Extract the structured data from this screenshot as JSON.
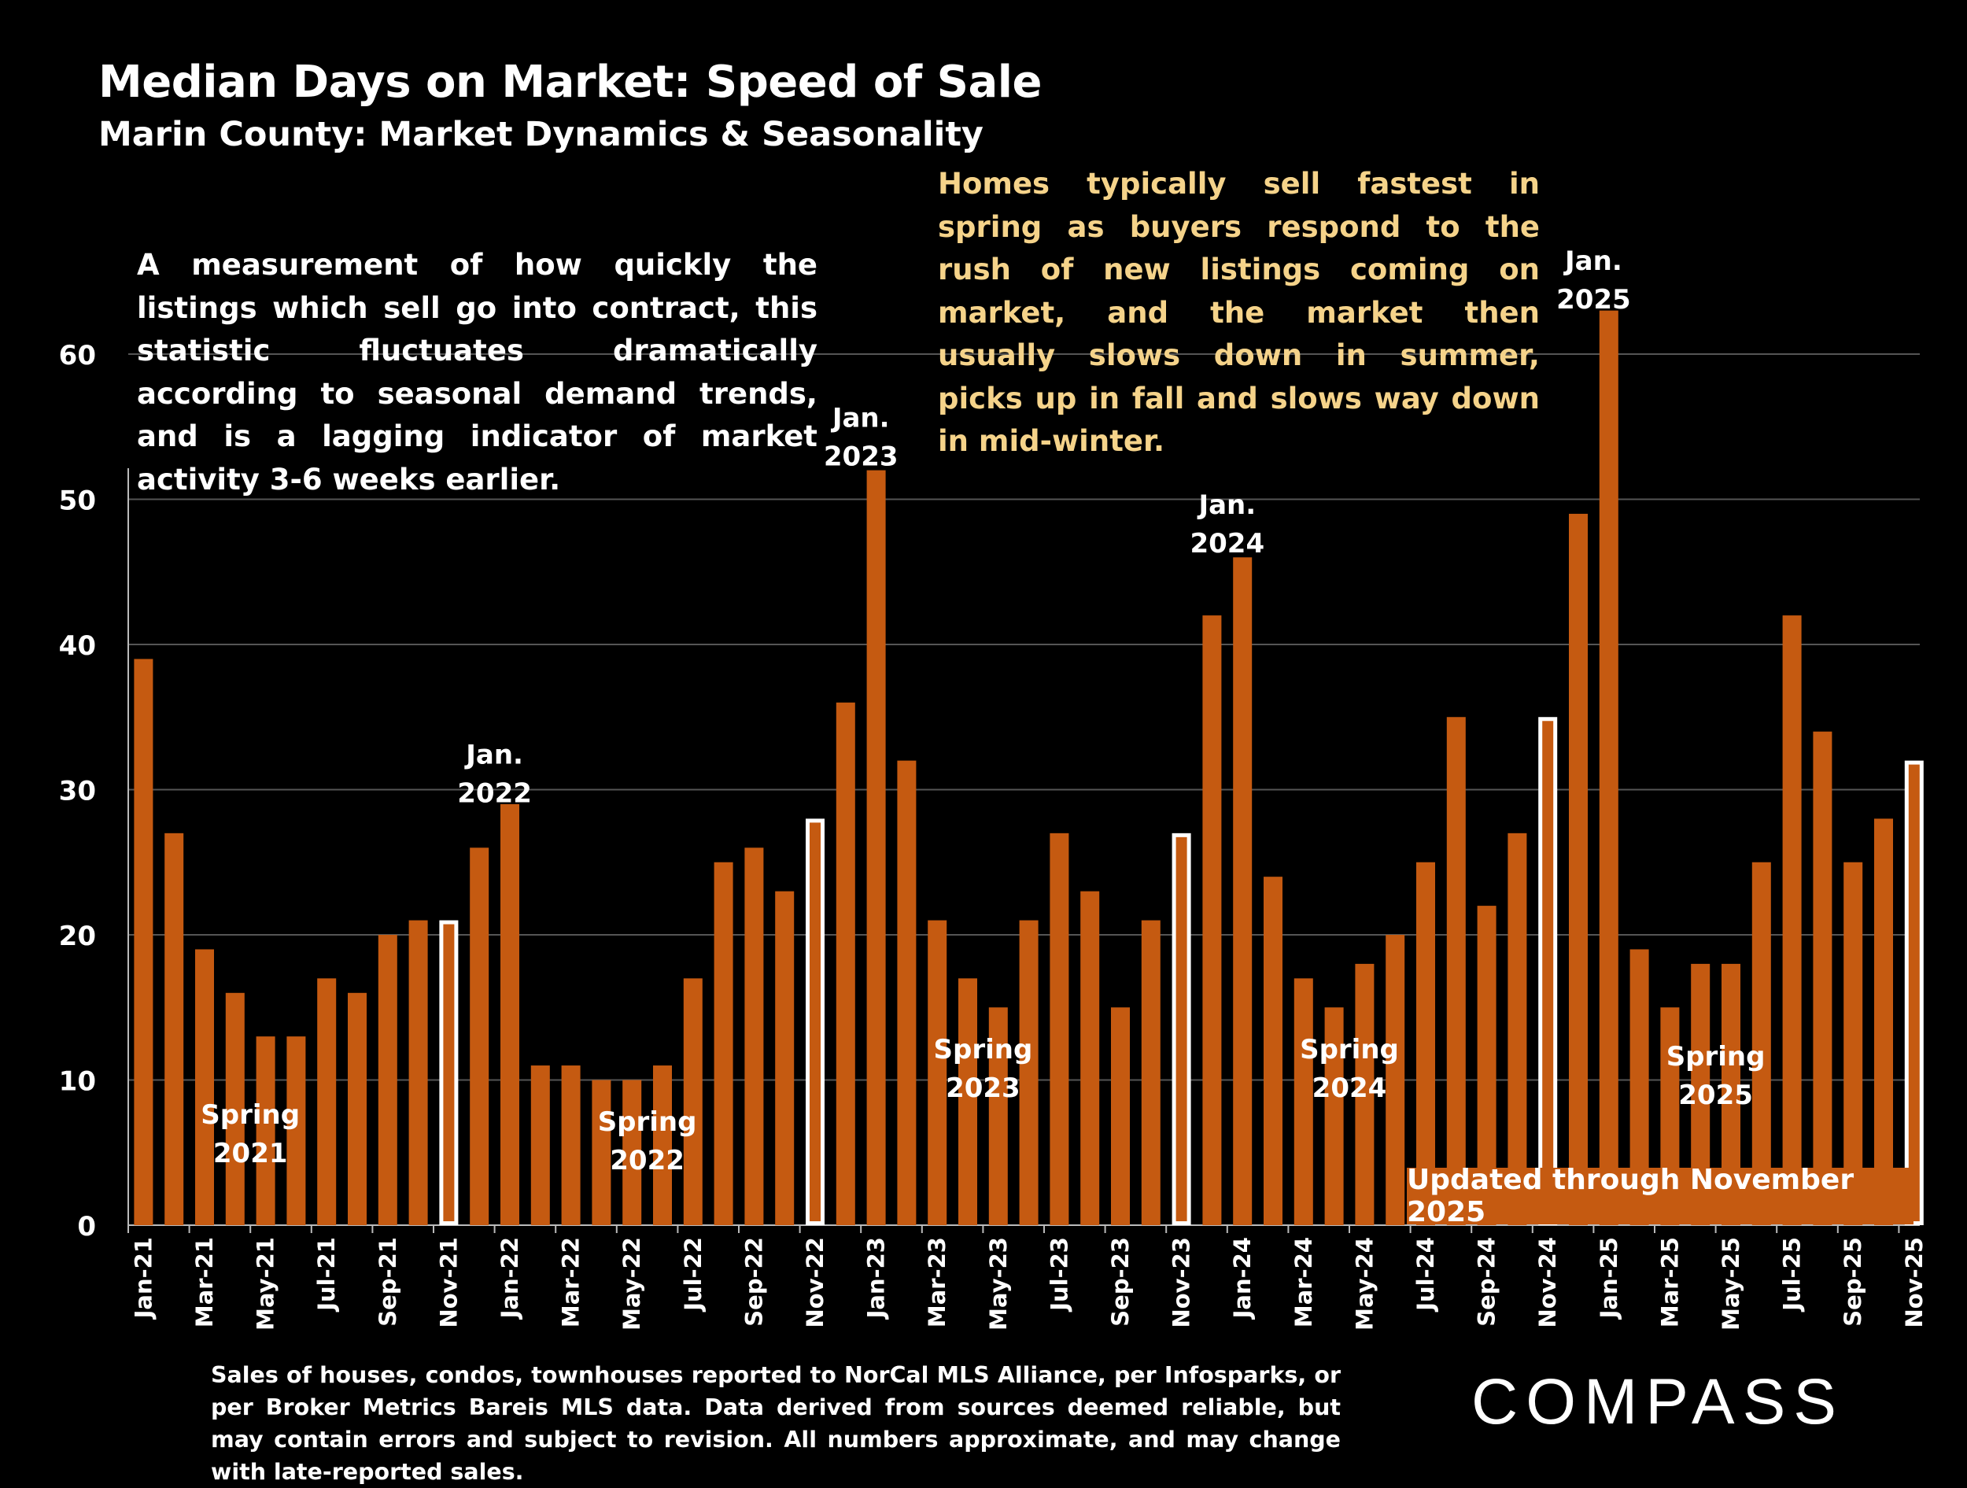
{
  "header": {
    "title": "Median Days on Market:  Speed of Sale",
    "subtitle": "Marin County: Market Dynamics & Seasonality"
  },
  "description": "A measurement of how quickly the listings which sell go into contract, this statistic fluctuates dramatically according to seasonal demand trends, and is a lagging indicator of market activity 3-6 weeks earlier.",
  "note": "Homes typically sell fastest in spring as buyers respond to the rush of new listings coming on market, and the market then usually slows down in summer, picks up in fall and slows way down in mid-winter.",
  "updated": "Updated through November 2025",
  "source": "Sales of houses, condos, townhouses reported to NorCal MLS Alliance, per Infosparks, or per Broker Metrics Bareis MLS data. Data derived from sources deemed reliable, but may contain errors and subject to revision. All numbers approximate, and may change with late-reported sales.",
  "logo": "COMPASS",
  "chart_data": {
    "type": "bar",
    "title": "Median Days on Market:  Speed of Sale",
    "ylim": [
      0,
      63
    ],
    "yticks": [
      0,
      10,
      20,
      30,
      40,
      50,
      60
    ],
    "grid": true,
    "categories": [
      "Jan-21",
      "Feb-21",
      "Mar-21",
      "Apr-21",
      "May-21",
      "Jun-21",
      "Jul-21",
      "Aug-21",
      "Sep-21",
      "Oct-21",
      "Nov-21",
      "Dec-21",
      "Jan-22",
      "Feb-22",
      "Mar-22",
      "Apr-22",
      "May-22",
      "Jun-22",
      "Jul-22",
      "Aug-22",
      "Sep-22",
      "Oct-22",
      "Nov-22",
      "Dec-22",
      "Jan-23",
      "Feb-23",
      "Mar-23",
      "Apr-23",
      "May-23",
      "Jun-23",
      "Jul-23",
      "Aug-23",
      "Sep-23",
      "Oct-23",
      "Nov-23",
      "Dec-23",
      "Jan-24",
      "Feb-24",
      "Mar-24",
      "Apr-24",
      "May-24",
      "Jun-24",
      "Jul-24",
      "Aug-24",
      "Sep-24",
      "Oct-24",
      "Nov-24",
      "Dec-24",
      "Jan-25",
      "Feb-25",
      "Mar-25",
      "Apr-25",
      "May-25",
      "Jun-25",
      "Jul-25",
      "Aug-25",
      "Sep-25",
      "Oct-25",
      "Nov-25"
    ],
    "values": [
      39,
      27,
      19,
      16,
      13,
      13,
      17,
      16,
      20,
      21,
      21,
      26,
      29,
      11,
      11,
      10,
      10,
      11,
      17,
      25,
      26,
      23,
      28,
      36,
      52,
      32,
      21,
      17,
      15,
      21,
      27,
      23,
      15,
      21,
      27,
      42,
      46,
      24,
      17,
      15,
      18,
      20,
      25,
      35,
      22,
      27,
      35,
      49,
      63,
      19,
      15,
      18,
      18,
      25,
      42,
      34,
      25,
      28,
      32
    ],
    "highlighted": [
      "Nov-21",
      "Nov-22",
      "Nov-23",
      "Nov-24",
      "Nov-25"
    ],
    "xtick_labels": [
      "Jan-21",
      "Mar-21",
      "May-21",
      "Jul-21",
      "Sep-21",
      "Nov-21",
      "Jan-22",
      "Mar-22",
      "May-22",
      "Jul-22",
      "Sep-22",
      "Nov-22",
      "Jan-23",
      "Mar-23",
      "May-23",
      "Jul-23",
      "Sep-23",
      "Nov-23",
      "Jan-24",
      "Mar-24",
      "May-24",
      "Jul-24",
      "Sep-24",
      "Nov-24",
      "Jan-25",
      "Mar-25",
      "May-25",
      "Jul-25",
      "Sep-25",
      "Nov-25"
    ],
    "annotations": [
      {
        "text": [
          "Spring",
          "2021"
        ],
        "at": "Apr-21",
        "y": 7
      },
      {
        "text": [
          "Jan.",
          "2022"
        ],
        "at": "Dec-21",
        "y": 31.8
      },
      {
        "text": [
          "Spring",
          "2022"
        ],
        "at": "May-22",
        "y": 6.5
      },
      {
        "text": [
          "Jan.",
          "2023"
        ],
        "at": "Dec-22",
        "y": 55
      },
      {
        "text": [
          "Spring",
          "2023"
        ],
        "at": "Apr-23",
        "y": 11.5
      },
      {
        "text": [
          "Jan.",
          "2024"
        ],
        "at": "Dec-23",
        "y": 49
      },
      {
        "text": [
          "Spring",
          "2024"
        ],
        "at": "Apr-24",
        "y": 11.5
      },
      {
        "text": [
          "Jan.",
          "2025"
        ],
        "at": "Dec-24",
        "y": 65.8
      },
      {
        "text": [
          "Spring",
          "2025"
        ],
        "at": "Apr-25",
        "y": 11
      }
    ],
    "colors": {
      "bar": "#c55a11",
      "highlight_fill": "#c55a11",
      "highlight_outline": "#ffffff",
      "grid": "#555555"
    }
  }
}
